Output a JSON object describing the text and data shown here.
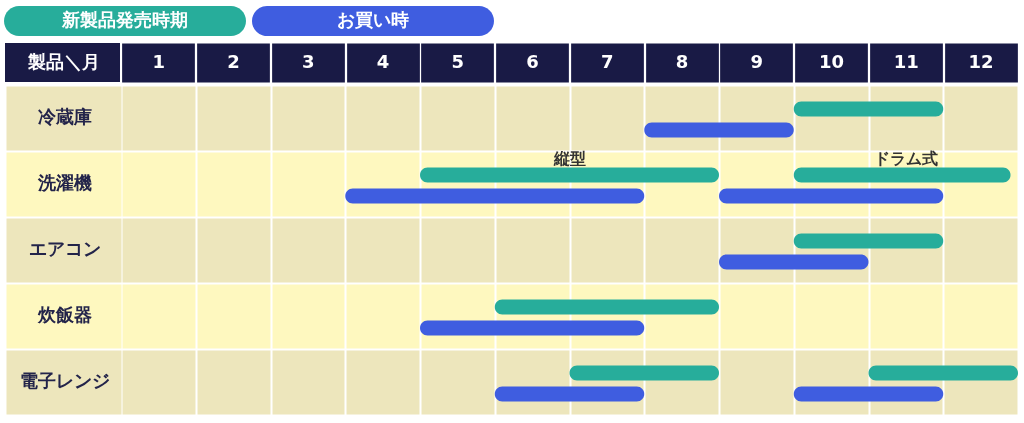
{
  "chart_data": {
    "type": "bar",
    "orientation": "horizontal",
    "ylabel": "製品＼月",
    "categories": [
      "冷蔵庫",
      "洗濯機",
      "エアコン",
      "炊飯器",
      "電子レンジ"
    ],
    "series": [
      {
        "name": "新製品発売時期",
        "color": "#27ad9b",
        "values": [
          2,
          4,
          2,
          3,
          2
        ],
        "base": [
          9,
          4,
          9,
          5,
          6
        ]
      },
      {
        "color": "#27ad9b",
        "values": [
          null,
          2.9,
          null,
          null,
          2
        ],
        "base": [
          null,
          9,
          null,
          null,
          10
        ]
      },
      {
        "name": "お買い時",
        "color": "#3f5de0",
        "values": [
          2,
          4,
          2,
          3,
          2
        ],
        "base": [
          7,
          3,
          8,
          4,
          5
        ]
      },
      {
        "color": "#3f5de0",
        "values": [
          null,
          3,
          null,
          null,
          2
        ],
        "base": [
          null,
          8,
          null,
          null,
          9
        ]
      }
    ],
    "xlim": [
      0,
      12
    ],
    "xticks": [
      {
        "value": 0,
        "label": null
      },
      {
        "value": 0.5,
        "label": "1"
      },
      {
        "value": 1,
        "label": null
      },
      {
        "value": 1.5,
        "label": "2"
      },
      {
        "value": 2,
        "label": null
      },
      {
        "value": 2.5,
        "label": "3"
      },
      {
        "value": 3,
        "label": null
      },
      {
        "value": 3.5,
        "label": "4"
      },
      {
        "value": 4,
        "label": null
      },
      {
        "value": 4.5,
        "label": "5"
      },
      {
        "value": 5,
        "label": null
      },
      {
        "value": 5.5,
        "label": "6"
      },
      {
        "value": 6,
        "label": null
      },
      {
        "value": 6.5,
        "label": "7"
      },
      {
        "value": 7,
        "label": null
      },
      {
        "value": 7.5,
        "label": "8"
      },
      {
        "value": 8,
        "label": null
      },
      {
        "value": 8.5,
        "label": "9"
      },
      {
        "value": 9,
        "label": null
      },
      {
        "value": 9.5,
        "label": "10"
      },
      {
        "value": 10,
        "label": null
      },
      {
        "value": 10.5,
        "label": "11"
      },
      {
        "value": 11,
        "label": null
      },
      {
        "value": 11.5,
        "label": "12"
      },
      {
        "value": 12,
        "label": null
      }
    ],
    "grid": true,
    "legend": "top left",
    "annotations": [
      {
        "text": "縦型",
        "x": 6,
        "y": "洗濯機"
      },
      {
        "text": "ドラム式",
        "x": 10.5,
        "y": "洗濯機"
      }
    ]
  }
}
